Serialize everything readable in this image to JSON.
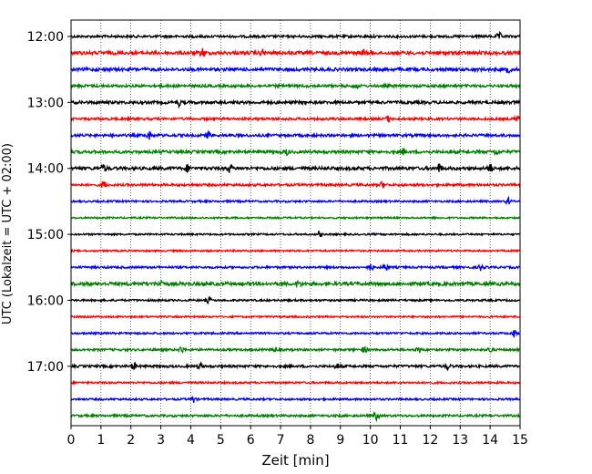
{
  "chart_data": {
    "type": "line",
    "title": "",
    "xlabel": "Zeit  [min]",
    "ylabel": "UTC (Lokalzeit = UTC + 02:00)",
    "xlim": [
      0,
      15
    ],
    "x_ticks": [
      0,
      1,
      2,
      3,
      4,
      5,
      6,
      7,
      8,
      9,
      10,
      11,
      12,
      13,
      14,
      15
    ],
    "y_tick_labels": [
      "12:00",
      "13:00",
      "14:00",
      "15:00",
      "16:00",
      "17:00"
    ],
    "grid": "vertical dotted at each minute",
    "trace_colors": [
      "#000000",
      "#ff0000",
      "#0000ff",
      "#008000"
    ],
    "series": [
      {
        "start": "12:00",
        "color": "#000000",
        "amplitude": 1.0,
        "events": [
          {
            "x": 14.3,
            "amp": 2.5
          }
        ]
      },
      {
        "start": "12:15",
        "color": "#ff0000",
        "amplitude": 1.4,
        "events": [
          {
            "x": 4.4,
            "amp": 3.0
          },
          {
            "x": 6.4,
            "amp": 2.0
          },
          {
            "x": 9.8,
            "amp": 2.0
          }
        ]
      },
      {
        "start": "12:30",
        "color": "#0000ff",
        "amplitude": 1.3,
        "events": [
          {
            "x": 14.6,
            "amp": 2.0
          }
        ]
      },
      {
        "start": "12:45",
        "color": "#008000",
        "amplitude": 1.1,
        "events": [
          {
            "x": 9.5,
            "amp": 2.0
          }
        ]
      },
      {
        "start": "13:00",
        "color": "#000000",
        "amplitude": 1.2,
        "events": [
          {
            "x": 3.6,
            "amp": 2.0
          }
        ]
      },
      {
        "start": "13:15",
        "color": "#ff0000",
        "amplitude": 1.0,
        "events": [
          {
            "x": 10.6,
            "amp": 2.0
          },
          {
            "x": 14.9,
            "amp": 2.0
          }
        ]
      },
      {
        "start": "13:30",
        "color": "#0000ff",
        "amplitude": 1.1,
        "events": [
          {
            "x": 2.6,
            "amp": 3.0
          },
          {
            "x": 4.6,
            "amp": 2.5
          }
        ]
      },
      {
        "start": "13:45",
        "color": "#008000",
        "amplitude": 1.2,
        "events": [
          {
            "x": 7.2,
            "amp": 2.0
          },
          {
            "x": 11.1,
            "amp": 2.0
          },
          {
            "x": 14.2,
            "amp": 2.0
          }
        ]
      },
      {
        "start": "14:00",
        "color": "#000000",
        "amplitude": 1.3,
        "events": [
          {
            "x": 1.1,
            "amp": 2.5
          },
          {
            "x": 3.9,
            "amp": 2.5
          },
          {
            "x": 5.3,
            "amp": 2.5
          },
          {
            "x": 12.3,
            "amp": 3.0
          },
          {
            "x": 14.0,
            "amp": 3.0
          }
        ]
      },
      {
        "start": "14:15",
        "color": "#ff0000",
        "amplitude": 1.0,
        "events": [
          {
            "x": 1.1,
            "amp": 3.0
          },
          {
            "x": 10.4,
            "amp": 2.0
          }
        ]
      },
      {
        "start": "14:30",
        "color": "#0000ff",
        "amplitude": 0.8,
        "events": [
          {
            "x": 14.6,
            "amp": 2.5
          }
        ]
      },
      {
        "start": "14:45",
        "color": "#008000",
        "amplitude": 0.7,
        "events": []
      },
      {
        "start": "15:00",
        "color": "#000000",
        "amplitude": 0.7,
        "events": [
          {
            "x": 8.3,
            "amp": 2.0
          }
        ]
      },
      {
        "start": "15:15",
        "color": "#ff0000",
        "amplitude": 0.7,
        "events": []
      },
      {
        "start": "15:30",
        "color": "#0000ff",
        "amplitude": 0.9,
        "events": [
          {
            "x": 10.0,
            "amp": 2.5
          },
          {
            "x": 10.5,
            "amp": 2.5
          },
          {
            "x": 13.7,
            "amp": 2.5
          }
        ]
      },
      {
        "start": "15:45",
        "color": "#008000",
        "amplitude": 1.4,
        "events": [
          {
            "x": 3.0,
            "amp": 2.5
          },
          {
            "x": 7.6,
            "amp": 2.0
          }
        ]
      },
      {
        "start": "16:00",
        "color": "#000000",
        "amplitude": 0.8,
        "events": [
          {
            "x": 4.6,
            "amp": 2.0
          }
        ]
      },
      {
        "start": "16:15",
        "color": "#ff0000",
        "amplitude": 0.7,
        "events": []
      },
      {
        "start": "16:30",
        "color": "#0000ff",
        "amplitude": 0.8,
        "events": [
          {
            "x": 14.8,
            "amp": 2.5
          }
        ]
      },
      {
        "start": "16:45",
        "color": "#008000",
        "amplitude": 0.9,
        "events": [
          {
            "x": 3.7,
            "amp": 2.5
          },
          {
            "x": 6.8,
            "amp": 2.0
          },
          {
            "x": 9.8,
            "amp": 2.0
          },
          {
            "x": 11.6,
            "amp": 2.5
          },
          {
            "x": 14.0,
            "amp": 2.0
          }
        ]
      },
      {
        "start": "17:00",
        "color": "#000000",
        "amplitude": 1.0,
        "events": [
          {
            "x": 2.1,
            "amp": 2.5
          },
          {
            "x": 4.3,
            "amp": 2.0
          },
          {
            "x": 8.9,
            "amp": 2.0
          },
          {
            "x": 12.6,
            "amp": 2.0
          }
        ]
      },
      {
        "start": "17:15",
        "color": "#ff0000",
        "amplitude": 0.8,
        "events": []
      },
      {
        "start": "17:30",
        "color": "#0000ff",
        "amplitude": 0.8,
        "events": [
          {
            "x": 4.1,
            "amp": 2.0
          }
        ]
      },
      {
        "start": "17:45",
        "color": "#008000",
        "amplitude": 0.9,
        "events": [
          {
            "x": 10.2,
            "amp": 3.5
          }
        ]
      }
    ]
  }
}
